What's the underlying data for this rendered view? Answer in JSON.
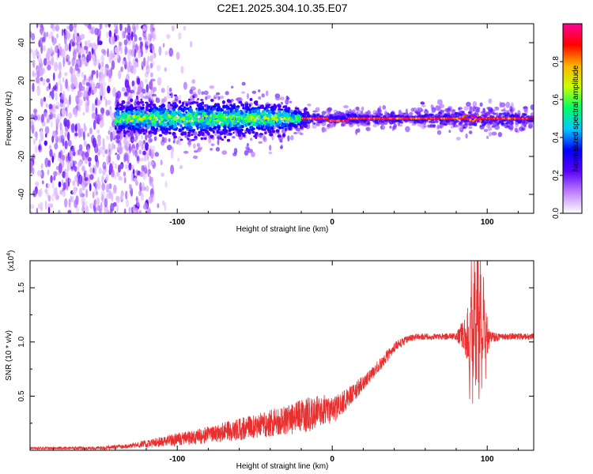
{
  "figure_title": "C2E1.2025.304.10.35.E07",
  "colorbar": {
    "label": "Normalized spectral amplitude",
    "ticks": [
      "0.0",
      "0.2",
      "0.4",
      "0.6",
      "0.8"
    ],
    "tick_values": [
      0.0,
      0.2,
      0.4,
      0.6,
      0.8
    ],
    "range": [
      0,
      1
    ],
    "colors": [
      "#ffffff",
      "#c080ff",
      "#5a00ff",
      "#0000ff",
      "#00c8ff",
      "#00ff64",
      "#c8ff00",
      "#ffb400",
      "#ff0000",
      "#ff0096"
    ]
  },
  "chart_data": [
    {
      "type": "heatmap",
      "title": "",
      "xlabel": "Height of straight line (km)",
      "ylabel": "Frequency (Hz)",
      "xlim": [
        -195,
        130
      ],
      "ylim": [
        -50,
        50
      ],
      "xticks": [
        -100,
        0,
        100
      ],
      "xtick_labels": [
        "-100",
        "0",
        "100"
      ],
      "yticks": [
        -40,
        -20,
        0,
        20,
        40
      ],
      "ytick_labels": [
        "-40",
        "-20",
        "0",
        "20",
        "40"
      ],
      "description_of_values": "Noise-dominated scatter (amplitude ~0.05-0.2) for x < -120 km; a band centered on 0 Hz widening to about ±10 Hz between -140 and -20 km with amplitudes 0.3-0.6; a narrow high-amplitude (~0.9-1.0) line at 0 Hz from about -20 km to 130 km with a slight dip near 0 km and bursts near 90 km.",
      "band_center_hz": 0,
      "band_halfwidth_hz": [
        [
          -140,
          8
        ],
        [
          -100,
          10
        ],
        [
          -60,
          10
        ],
        [
          -30,
          8
        ],
        [
          -20,
          4
        ],
        [
          0,
          3
        ],
        [
          50,
          3
        ],
        [
          90,
          5
        ],
        [
          130,
          3
        ]
      ],
      "line_peak_amplitude": 1.0
    },
    {
      "type": "line",
      "title": "",
      "xlabel": "Height of straight line (km)",
      "ylabel": "SNR (10 * v/v)",
      "y_multiplier_label": "(x10",
      "y_multiplier_exp": "4",
      "y_multiplier_close": ")",
      "xlim": [
        -195,
        130
      ],
      "ylim": [
        0,
        1.75
      ],
      "xticks": [
        -100,
        0,
        100
      ],
      "xtick_labels": [
        "-100",
        "0",
        "100"
      ],
      "yticks": [
        0.5,
        1.0,
        1.5
      ],
      "ytick_labels": [
        "0.5",
        "1.0",
        "1.5"
      ],
      "series": [
        {
          "name": "SNR",
          "color": "#e83030",
          "envelope_x": [
            -195,
            -150,
            -130,
            -110,
            -90,
            -70,
            -50,
            -30,
            -15,
            -5,
            0,
            10,
            20,
            30,
            40,
            50,
            60,
            70,
            80,
            88,
            90,
            92,
            94,
            96,
            98,
            100,
            110,
            120,
            130
          ],
          "envelope_y": [
            0.02,
            0.02,
            0.04,
            0.08,
            0.12,
            0.17,
            0.22,
            0.28,
            0.33,
            0.38,
            0.36,
            0.48,
            0.62,
            0.78,
            0.95,
            1.04,
            1.05,
            1.05,
            1.05,
            1.05,
            1.1,
            1.1,
            1.15,
            1.1,
            1.06,
            1.04,
            1.05,
            1.05,
            1.05
          ],
          "noise_x": [
            -195,
            -130,
            -110,
            -80,
            -50,
            -30,
            -15,
            0,
            10,
            20,
            40,
            50,
            80,
            86,
            90,
            94,
            98,
            102,
            110,
            130
          ],
          "noise_amp": [
            0.01,
            0.02,
            0.05,
            0.08,
            0.11,
            0.14,
            0.16,
            0.12,
            0.1,
            0.07,
            0.05,
            0.03,
            0.03,
            0.2,
            0.4,
            0.6,
            0.3,
            0.05,
            0.03,
            0.03
          ]
        }
      ]
    }
  ]
}
